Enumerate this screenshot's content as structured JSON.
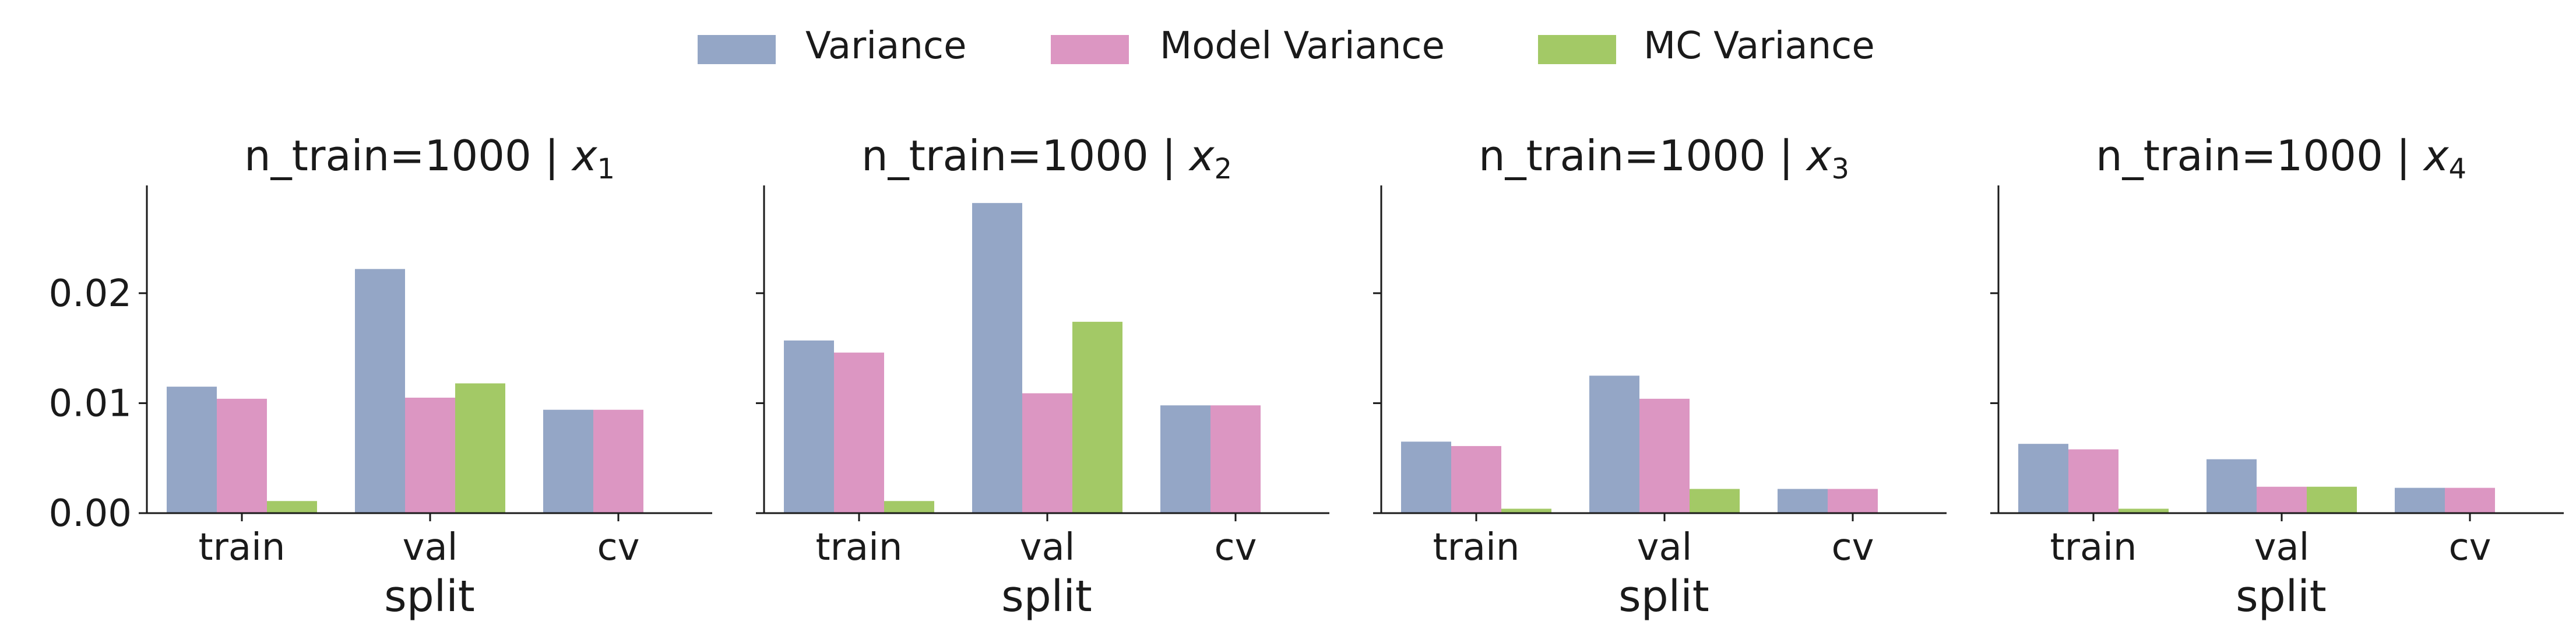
{
  "legend": {
    "placement": "top-center",
    "items": [
      {
        "label": "Variance",
        "color": "#94a6c6"
      },
      {
        "label": "Model Variance",
        "color": "#dc96c2"
      },
      {
        "label": "MC Variance",
        "color": "#a3c966"
      }
    ]
  },
  "chart_data": [
    {
      "type": "bar",
      "title": "n_train=1000 | x1",
      "xlabel": "split",
      "ylabel": "",
      "categories": [
        "train",
        "val",
        "cv"
      ],
      "ylim": [
        0,
        0.0298
      ],
      "yticks": [
        0.0,
        0.01,
        0.02
      ],
      "ytick_labels": [
        "0.00",
        "0.01",
        "0.02"
      ],
      "grid": false,
      "series": [
        {
          "name": "Variance",
          "values": [
            0.0115,
            0.0222,
            0.0094
          ]
        },
        {
          "name": "Model Variance",
          "values": [
            0.0104,
            0.0105,
            0.0094
          ]
        },
        {
          "name": "MC Variance",
          "values": [
            0.0011,
            0.0118,
            null
          ]
        }
      ]
    },
    {
      "type": "bar",
      "title": "n_train=1000 | x2",
      "xlabel": "split",
      "ylabel": "",
      "categories": [
        "train",
        "val",
        "cv"
      ],
      "ylim": [
        0,
        0.0298
      ],
      "yticks": [
        0.0,
        0.01,
        0.02
      ],
      "ytick_labels": [
        "",
        "",
        ""
      ],
      "grid": false,
      "series": [
        {
          "name": "Variance",
          "values": [
            0.0157,
            0.0282,
            0.0098
          ]
        },
        {
          "name": "Model Variance",
          "values": [
            0.0146,
            0.0109,
            0.0098
          ]
        },
        {
          "name": "MC Variance",
          "values": [
            0.0011,
            0.0174,
            null
          ]
        }
      ]
    },
    {
      "type": "bar",
      "title": "n_train=1000 | x3",
      "xlabel": "split",
      "ylabel": "",
      "categories": [
        "train",
        "val",
        "cv"
      ],
      "ylim": [
        0,
        0.0298
      ],
      "yticks": [
        0.0,
        0.01,
        0.02
      ],
      "ytick_labels": [
        "",
        "",
        ""
      ],
      "grid": false,
      "series": [
        {
          "name": "Variance",
          "values": [
            0.0065,
            0.0125,
            0.0022
          ]
        },
        {
          "name": "Model Variance",
          "values": [
            0.0061,
            0.0104,
            0.0022
          ]
        },
        {
          "name": "MC Variance",
          "values": [
            0.0004,
            0.0022,
            null
          ]
        }
      ]
    },
    {
      "type": "bar",
      "title": "n_train=1000 | x4",
      "xlabel": "split",
      "ylabel": "",
      "categories": [
        "train",
        "val",
        "cv"
      ],
      "ylim": [
        0,
        0.0298
      ],
      "yticks": [
        0.0,
        0.01,
        0.02
      ],
      "ytick_labels": [
        "",
        "",
        ""
      ],
      "grid": false,
      "series": [
        {
          "name": "Variance",
          "values": [
            0.0063,
            0.0049,
            0.0023
          ]
        },
        {
          "name": "Model Variance",
          "values": [
            0.0058,
            0.0024,
            0.0023
          ]
        },
        {
          "name": "MC Variance",
          "values": [
            0.0004,
            0.0024,
            null
          ]
        }
      ]
    }
  ]
}
